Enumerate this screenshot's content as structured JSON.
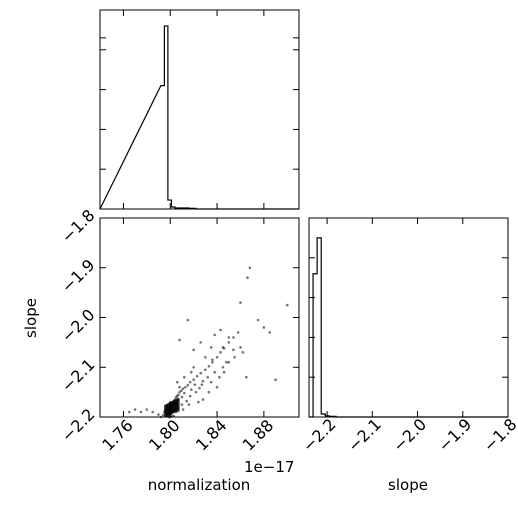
{
  "chart_data": [
    {
      "type": "histogram",
      "panel": "top-left",
      "variable": "normalization",
      "xlim": [
        1.74,
        1.91
      ],
      "bins": [
        {
          "x0": 1.792,
          "x1": 1.795,
          "count": 0.62
        },
        {
          "x0": 1.795,
          "x1": 1.798,
          "count": 0.92
        },
        {
          "x0": 1.798,
          "x1": 1.801,
          "count": 0.045
        },
        {
          "x0": 1.801,
          "x1": 1.804,
          "count": 0.01
        },
        {
          "x0": 1.804,
          "x1": 1.816,
          "count": 0.005
        },
        {
          "x0": 1.816,
          "x1": 1.822,
          "count": 0.003
        },
        {
          "x0": 1.822,
          "x1": 1.828,
          "count": 0.0
        }
      ],
      "ylim": [
        0,
        1.0
      ]
    },
    {
      "type": "scatter",
      "panel": "bottom-left",
      "xlabel": "normalization",
      "ylabel": "slope",
      "x_offset_label": "1e−17",
      "xlim": [
        1.74,
        1.91
      ],
      "ylim": [
        -2.2,
        -1.8
      ],
      "xticks": [
        "1.76",
        "1.80",
        "1.84",
        "1.88"
      ],
      "yticks": [
        "−2.2",
        "−2.1",
        "−2.0",
        "−1.9",
        "−1.8"
      ],
      "points": [
        [
          1.7975,
          -2.195
        ],
        [
          1.798,
          -2.192
        ],
        [
          1.7985,
          -2.19
        ],
        [
          1.799,
          -2.187
        ],
        [
          1.7995,
          -2.185
        ],
        [
          1.8,
          -2.182
        ],
        [
          1.7978,
          -2.197
        ],
        [
          1.7988,
          -2.193
        ],
        [
          1.7992,
          -2.189
        ],
        [
          1.8005,
          -2.18
        ],
        [
          1.801,
          -2.176
        ],
        [
          1.802,
          -2.172
        ],
        [
          1.803,
          -2.168
        ],
        [
          1.804,
          -2.165
        ],
        [
          1.805,
          -2.16
        ],
        [
          1.806,
          -2.158
        ],
        [
          1.807,
          -2.155
        ],
        [
          1.808,
          -2.15
        ],
        [
          1.8095,
          -2.147
        ],
        [
          1.811,
          -2.143
        ],
        [
          1.813,
          -2.14
        ],
        [
          1.815,
          -2.136
        ],
        [
          1.817,
          -2.13
        ],
        [
          1.82,
          -2.125
        ],
        [
          1.823,
          -2.118
        ],
        [
          1.826,
          -2.112
        ],
        [
          1.83,
          -2.105
        ],
        [
          1.833,
          -2.098
        ],
        [
          1.836,
          -2.09
        ],
        [
          1.84,
          -2.08
        ],
        [
          1.843,
          -2.07
        ],
        [
          1.846,
          -2.062
        ],
        [
          1.85,
          -2.05
        ],
        [
          1.854,
          -2.04
        ],
        [
          1.858,
          -2.03
        ],
        [
          1.795,
          -2.19
        ],
        [
          1.794,
          -2.196
        ],
        [
          1.796,
          -2.186
        ],
        [
          1.802,
          -2.178
        ],
        [
          1.8,
          -2.17
        ],
        [
          1.804,
          -2.174
        ],
        [
          1.81,
          -2.16
        ],
        [
          1.812,
          -2.152
        ],
        [
          1.818,
          -2.145
        ],
        [
          1.821,
          -2.135
        ],
        [
          1.828,
          -2.128
        ],
        [
          1.832,
          -2.12
        ],
        [
          1.838,
          -2.11
        ],
        [
          1.845,
          -2.1
        ],
        [
          1.85,
          -2.09
        ],
        [
          1.855,
          -2.08
        ],
        [
          1.862,
          -2.07
        ],
        [
          1.875,
          -2.005
        ],
        [
          1.88,
          -2.02
        ],
        [
          1.86,
          -1.97
        ],
        [
          1.866,
          -1.92
        ],
        [
          1.868,
          -1.9
        ],
        [
          1.838,
          -2.035
        ],
        [
          1.835,
          -2.06
        ],
        [
          1.83,
          -2.08
        ],
        [
          1.826,
          -2.05
        ],
        [
          1.815,
          -2.005
        ],
        [
          1.82,
          -2.1
        ],
        [
          1.812,
          -2.12
        ],
        [
          1.808,
          -2.14
        ],
        [
          1.806,
          -2.13
        ],
        [
          1.85,
          -2.04
        ],
        [
          1.845,
          -2.06
        ],
        [
          1.833,
          -2.15
        ],
        [
          1.84,
          -2.14
        ],
        [
          1.846,
          -2.11
        ],
        [
          1.86,
          -2.06
        ],
        [
          1.865,
          -2.12
        ],
        [
          1.89,
          -2.125
        ],
        [
          1.9,
          -1.975
        ],
        [
          1.885,
          -2.03
        ],
        [
          1.78,
          -2.185
        ],
        [
          1.775,
          -2.19
        ],
        [
          1.765,
          -2.19
        ],
        [
          1.77,
          -2.185
        ],
        [
          1.785,
          -2.19
        ],
        [
          1.79,
          -2.195
        ],
        [
          1.792,
          -2.2
        ],
        [
          1.8,
          -2.2
        ],
        [
          1.803,
          -2.198
        ],
        [
          1.807,
          -2.188
        ],
        [
          1.81,
          -2.175
        ],
        [
          1.814,
          -2.168
        ],
        [
          1.817,
          -2.158
        ],
        [
          1.822,
          -2.15
        ],
        [
          1.825,
          -2.142
        ],
        [
          1.828,
          -2.165
        ],
        [
          1.835,
          -2.13
        ],
        [
          1.842,
          -2.12
        ],
        [
          1.848,
          -2.09
        ],
        [
          1.818,
          -2.11
        ],
        [
          1.808,
          -2.045
        ],
        [
          1.82,
          -2.065
        ],
        [
          1.827,
          -2.135
        ],
        [
          1.843,
          -2.025
        ],
        [
          1.854,
          -2.065
        ],
        [
          1.836,
          -2.085
        ],
        [
          1.824,
          -2.17
        ],
        [
          1.816,
          -2.175
        ],
        [
          1.811,
          -2.185
        ],
        [
          1.805,
          -2.19
        ],
        [
          1.799,
          -2.2
        ],
        [
          1.801,
          -2.197
        ]
      ]
    },
    {
      "type": "histogram",
      "panel": "bottom-right",
      "xlabel": "slope",
      "xlim": [
        -2.24,
        -1.8
      ],
      "xticks": [
        "−2.2",
        "−2.1",
        "−2.0",
        "−1.9",
        "−1.8"
      ],
      "bins": [
        {
          "x0": -2.24,
          "x1": -2.231,
          "count": 0.0
        },
        {
          "x0": -2.231,
          "x1": -2.222,
          "count": 0.72
        },
        {
          "x0": -2.222,
          "x1": -2.213,
          "count": 0.9
        },
        {
          "x0": -2.213,
          "x1": -2.204,
          "count": 0.015
        },
        {
          "x0": -2.204,
          "x1": -2.195,
          "count": 0.006
        },
        {
          "x0": -2.195,
          "x1": -2.18,
          "count": 0.003
        },
        {
          "x0": -2.18,
          "x1": -1.8,
          "count": 0.0
        }
      ],
      "ylim": [
        0,
        1.0
      ]
    }
  ]
}
